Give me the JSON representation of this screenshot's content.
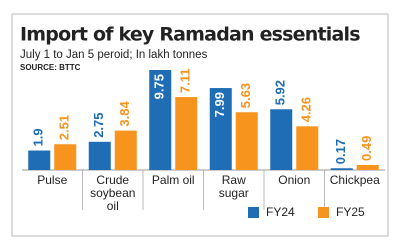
{
  "chart_data": {
    "type": "bar",
    "title": "Import of key Ramadan essentials",
    "subtitle": "July 1 to Jan 5 peroid; In lakh tonnes",
    "source": "SOURCE: BTTC",
    "categories": [
      "Pulse",
      "Crude soybean oil",
      "Palm oil",
      "Raw sugar",
      "Onion",
      "Chickpea"
    ],
    "series": [
      {
        "name": "FY24",
        "color": "#1f6db5",
        "values": [
          1.9,
          2.75,
          9.75,
          7.99,
          5.92,
          0.17
        ]
      },
      {
        "name": "FY25",
        "color": "#f7941d",
        "values": [
          2.51,
          3.84,
          7.11,
          5.63,
          4.26,
          0.49
        ]
      }
    ]
  }
}
